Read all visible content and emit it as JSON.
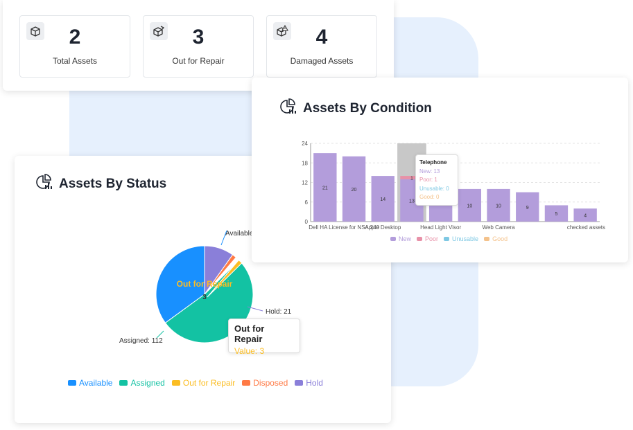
{
  "stats": [
    {
      "value": "2",
      "label": "Total Assets",
      "icon": "box-icon"
    },
    {
      "value": "3",
      "label": "Out for Repair",
      "icon": "repair-box-icon"
    },
    {
      "value": "4",
      "label": "Damaged Assets",
      "icon": "damaged-box-icon"
    }
  ],
  "status_chart": {
    "title": "Assets By Status",
    "center_label": "Out for Repair",
    "center_value": "3",
    "slice_labels": {
      "available": "Available",
      "assigned": "Assigned: 112",
      "hold": "Hold: 21"
    },
    "tooltip": {
      "title": "Out for Repair",
      "value": "Value: 3"
    },
    "legend": [
      {
        "name": "Available",
        "color": "#1890ff"
      },
      {
        "name": "Assigned",
        "color": "#13c2a3"
      },
      {
        "name": "Out for Repair",
        "color": "#fbbd23"
      },
      {
        "name": "Disposed",
        "color": "#ff7a45"
      },
      {
        "name": "Hold",
        "color": "#8a7fd9"
      }
    ]
  },
  "condition_chart": {
    "title": "Assets By Condition",
    "y_ticks": [
      "0",
      "6",
      "12",
      "18",
      "24"
    ],
    "x_labels": [
      "Dell HA",
      "License for NSA 240",
      "Apple Desktop",
      "Head Light Visor",
      "Web Camera",
      "checked assets"
    ],
    "tooltip": {
      "title": "Telephone",
      "new": "New: 13",
      "poor": "Poor: 1",
      "unusable": "Unusable: 0",
      "good": "Good: 0"
    },
    "legend": [
      {
        "name": "New",
        "color": "#b39ddb"
      },
      {
        "name": "Poor",
        "color": "#e891a8"
      },
      {
        "name": "Unusable",
        "color": "#7ec8e3"
      },
      {
        "name": "Good",
        "color": "#f4c28b"
      }
    ]
  },
  "chart_data": [
    {
      "type": "pie",
      "title": "Assets By Status",
      "categories": [
        "Available",
        "Assigned",
        "Out for Repair",
        "Disposed",
        "Hold"
      ],
      "values": [
        75,
        112,
        3,
        3,
        21
      ],
      "colors": [
        "#1890ff",
        "#13c2a3",
        "#fbbd23",
        "#ff7a45",
        "#8a7fd9"
      ],
      "legend": "bottom"
    },
    {
      "type": "bar",
      "title": "Assets By Condition",
      "categories": [
        "Dell HA",
        "License for NSA 240",
        "Apple Desktop",
        "Telephone",
        "Head Light Visor",
        "",
        "Web Camera",
        "",
        "",
        "checked assets"
      ],
      "series": [
        {
          "name": "New",
          "values": [
            21,
            20,
            14,
            13,
            7,
            10,
            10,
            9,
            5,
            4
          ]
        },
        {
          "name": "Poor",
          "values": [
            0,
            0,
            0,
            1,
            0,
            0,
            0,
            0,
            0,
            0
          ]
        },
        {
          "name": "Unusable",
          "values": [
            0,
            0,
            0,
            0,
            0,
            0,
            0,
            0,
            0,
            0
          ]
        },
        {
          "name": "Good",
          "values": [
            0,
            0,
            0,
            0,
            0,
            0,
            0,
            0,
            0,
            0
          ]
        }
      ],
      "data_labels": [
        "21",
        "20",
        "14",
        "13",
        "",
        "10",
        "10",
        "9",
        "5",
        "4"
      ],
      "ylim": [
        0,
        24
      ],
      "grid": true,
      "legend": "bottom",
      "highlighted_category": "Telephone"
    }
  ]
}
